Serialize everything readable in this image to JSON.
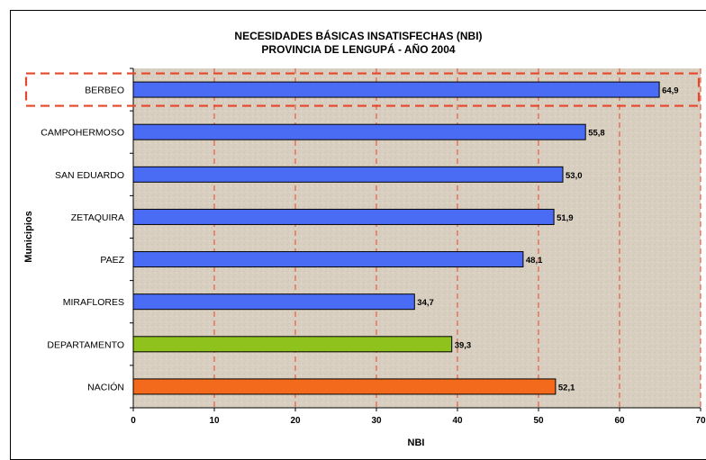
{
  "chart_data": {
    "type": "bar",
    "orientation": "horizontal",
    "title": "NECESIDADES BÁSICAS INSATISFECHAS (NBI)",
    "subtitle": "PROVINCIA DE LENGUPÁ - AÑO 2004",
    "xlabel": "NBI",
    "ylabel": "Municipios",
    "xlim": [
      0,
      70
    ],
    "xticks": [
      0,
      10,
      20,
      30,
      40,
      50,
      60,
      70
    ],
    "grid": "vertical-dashed",
    "categories": [
      "BERBEO",
      "CAMPOHERMOSO",
      "SAN EDUARDO",
      "ZETAQUIRA",
      "PAEZ",
      "MIRAFLORES",
      "DEPARTAMENTO",
      "NACIÓN"
    ],
    "values": [
      64.9,
      55.8,
      53.0,
      51.9,
      48.1,
      34.7,
      39.3,
      52.1
    ],
    "value_labels": [
      "64,9",
      "55,8",
      "53,0",
      "51,9",
      "48,1",
      "34,7",
      "39,3",
      "52,1"
    ],
    "bar_colors": [
      "#4a6cf5",
      "#4a6cf5",
      "#4a6cf5",
      "#4a6cf5",
      "#4a6cf5",
      "#4a6cf5",
      "#8fc21c",
      "#f46a1d"
    ],
    "highlight_category": "BERBEO",
    "highlight_color": "#e8462a",
    "plot_background": "#d8cfc0",
    "grid_color": "#e8462a"
  }
}
